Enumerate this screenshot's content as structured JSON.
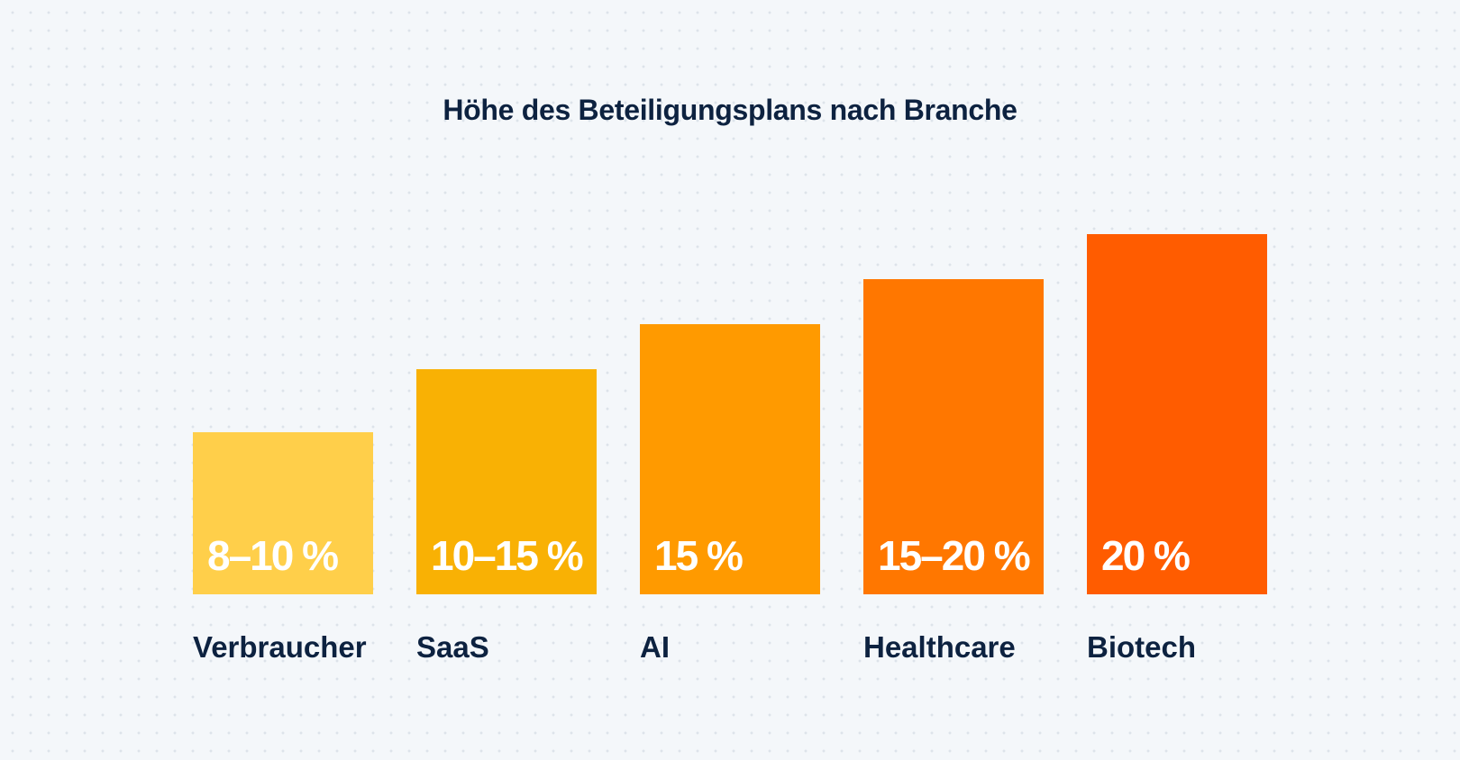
{
  "chart_data": {
    "type": "bar",
    "title": "Höhe des Beteiligungsplans nach Branche",
    "categories": [
      "Verbraucher",
      "SaaS",
      "AI",
      "Healthcare",
      "Biotech"
    ],
    "labels": [
      "8–10 %",
      "10–15 %",
      "15 %",
      "15–20 %",
      "20 %"
    ],
    "ranges": [
      [
        8,
        10
      ],
      [
        10,
        15
      ],
      [
        15,
        15
      ],
      [
        15,
        20
      ],
      [
        20,
        20
      ]
    ],
    "colors": [
      "#FFCF4A",
      "#F9B104",
      "#FF9A00",
      "#FF7700",
      "#FF5C00"
    ],
    "grid": false,
    "legend": "none"
  }
}
